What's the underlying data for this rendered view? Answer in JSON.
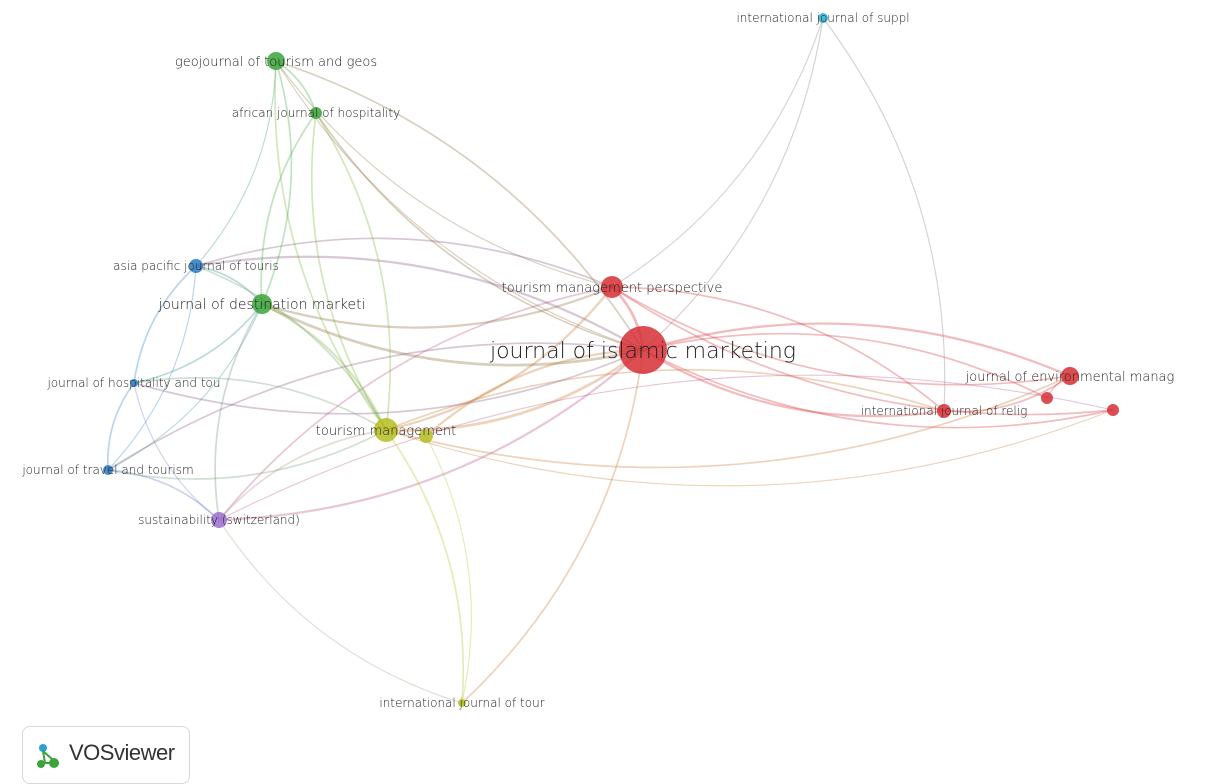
{
  "nodes": [
    {
      "id": "jim",
      "label": "journal of islamic marketing",
      "cluster": 1
    },
    {
      "id": "tmp",
      "label": "tourism management perspective",
      "cluster": 1
    },
    {
      "id": "jem",
      "label": "journal of environmental manag",
      "cluster": 1
    },
    {
      "id": "ijr",
      "label": "international journal of relig",
      "cluster": 1
    },
    {
      "id": "r3",
      "label": "",
      "cluster": 1
    },
    {
      "id": "r4",
      "label": "",
      "cluster": 1
    },
    {
      "id": "gtg",
      "label": "geojournal of tourism and geos",
      "cluster": 2
    },
    {
      "id": "ajh",
      "label": "african journal of hospitality",
      "cluster": 2
    },
    {
      "id": "jdm",
      "label": "journal of destination marketi",
      "cluster": 2
    },
    {
      "id": "apj",
      "label": "asia pacific journal of touris",
      "cluster": 3
    },
    {
      "id": "jht",
      "label": "journal of hospitality and tou",
      "cluster": 3
    },
    {
      "id": "jtt",
      "label": "journal of travel and tourism",
      "cluster": 3
    },
    {
      "id": "tm",
      "label": "tourism management",
      "cluster": 4
    },
    {
      "id": "y2",
      "label": "",
      "cluster": 4
    },
    {
      "id": "ijt",
      "label": "international journal of tour",
      "cluster": 4
    },
    {
      "id": "sus",
      "label": "sustainability (switzerland)",
      "cluster": 5
    },
    {
      "id": "ijs",
      "label": "international journal of suppl",
      "cluster": 6
    }
  ],
  "cluster_colors": {
    "1": "#d62f35",
    "2": "#3aa43a",
    "3": "#2a79c2",
    "4": "#b5bd22",
    "5": "#9b6fcf",
    "6": "#2ab3d0"
  },
  "branding": {
    "name": "VOSviewer",
    "icon": "vosviewer-logo-icon"
  }
}
